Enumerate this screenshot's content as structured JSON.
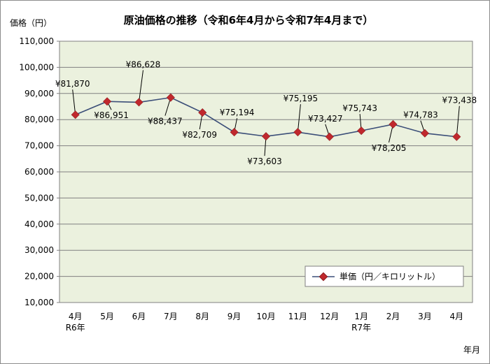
{
  "chart_data": {
    "type": "line",
    "title": "原油価格の推移（令和6年4月から令和7年4月まで）",
    "ylabel": "価格（円）",
    "xlabel": "年月",
    "ylim": [
      10000,
      110000
    ],
    "y_ticks": [
      "10,000",
      "20,000",
      "30,000",
      "40,000",
      "50,000",
      "60,000",
      "70,000",
      "80,000",
      "90,000",
      "100,000",
      "110,000"
    ],
    "categories": [
      "4月",
      "5月",
      "6月",
      "7月",
      "8月",
      "9月",
      "10月",
      "11月",
      "12月",
      "1月",
      "2月",
      "3月",
      "4月"
    ],
    "year_labels": [
      {
        "index": 0,
        "text": "R6年"
      },
      {
        "index": 9,
        "text": "R7年"
      }
    ],
    "series": [
      {
        "name": "単価（円／キロリットル）",
        "values": [
          81870,
          86951,
          86628,
          88437,
          82709,
          75194,
          73603,
          75195,
          73427,
          75743,
          78205,
          74783,
          73438
        ],
        "data_labels": [
          "¥81,870",
          "¥86,951",
          "¥86,628",
          "¥88,437",
          "¥82,709",
          "¥75,194",
          "¥73,603",
          "¥75,195",
          "¥73,427",
          "¥75,743",
          "¥78,205",
          "¥74,783",
          "¥73,438"
        ]
      }
    ],
    "grid": true,
    "legend_position": "bottom-right"
  },
  "colors": {
    "plot_bg": "#ebf1de",
    "line": "#3b4e78",
    "marker": "#c0282d",
    "grid": "#808080",
    "frame": "#8c8c8c"
  }
}
